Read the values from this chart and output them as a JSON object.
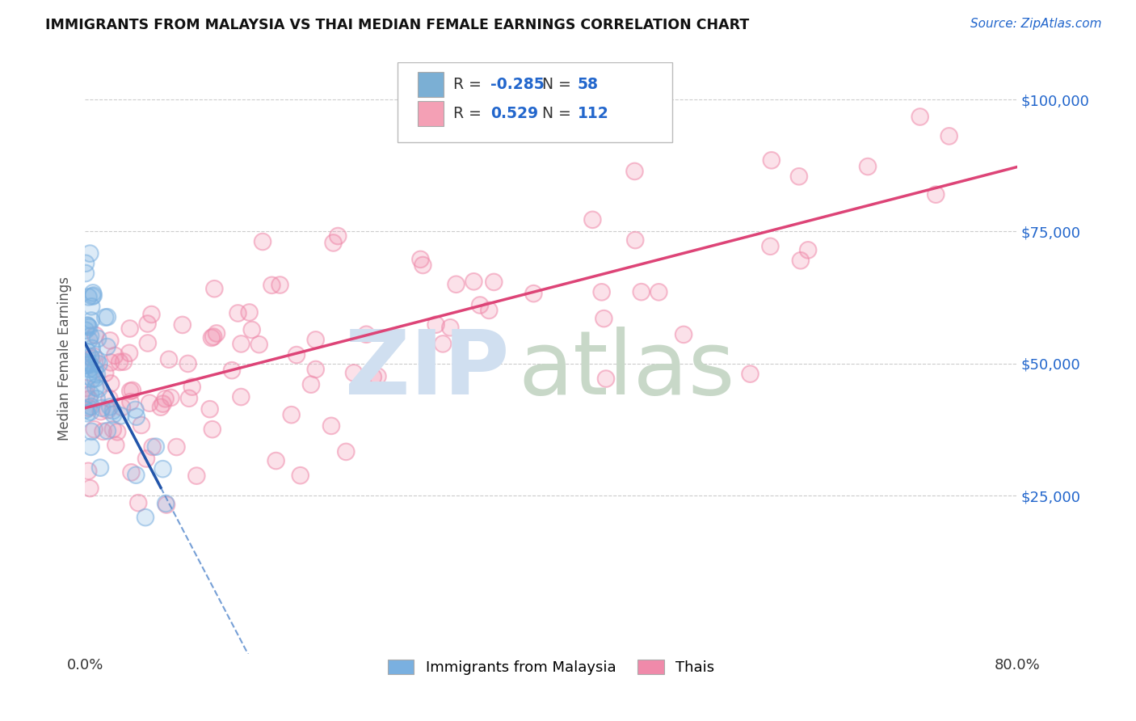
{
  "title": "IMMIGRANTS FROM MALAYSIA VS THAI MEDIAN FEMALE EARNINGS CORRELATION CHART",
  "source": "Source: ZipAtlas.com",
  "ylabel": "Median Female Earnings",
  "xmin": 0.0,
  "xmax": 0.8,
  "ymin": 0,
  "ymax": 107000,
  "blue_color": "#7bafd4",
  "pink_color": "#f4a0b5",
  "blue_scatter_color": "#7ab0e0",
  "pink_scatter_color": "#f08aaa",
  "trend_blue_solid": "#2255aa",
  "trend_blue_dashed": "#5588cc",
  "trend_pink": "#dd4477",
  "watermark_zip_color": "#d0dff0",
  "watermark_atlas_color": "#c8d8c8",
  "title_color": "#111111",
  "axis_label_color": "#555555",
  "ytick_color": "#2266cc",
  "background_color": "#ffffff",
  "grid_color": "#cccccc",
  "legend_box_color": "#cccccc",
  "source_color": "#2266cc"
}
